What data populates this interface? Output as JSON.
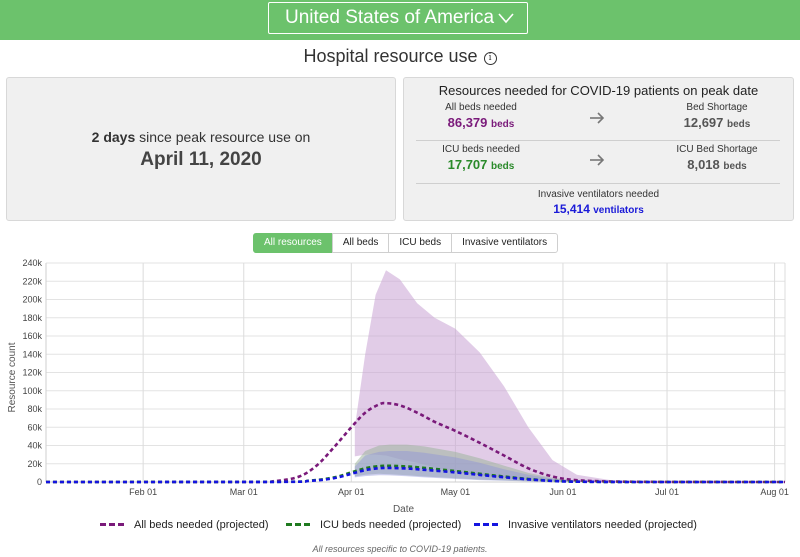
{
  "header": {
    "country": "United States of America",
    "title": "Hospital resource use"
  },
  "peak_card": {
    "days": "2 days",
    "since_text": " since peak resource use on",
    "date": "April 11, 2020"
  },
  "resources_card": {
    "title": "Resources needed for COVID-19 patients on peak date",
    "all_beds_label": "All beds needed",
    "all_beds_value": "86,379",
    "all_beds_unit": "beds",
    "bed_shortage_label": "Bed Shortage",
    "bed_shortage_value": "12,697",
    "bed_shortage_unit": "beds",
    "icu_label": "ICU beds needed",
    "icu_value": "17,707",
    "icu_unit": "beds",
    "icu_shortage_label": "ICU Bed Shortage",
    "icu_shortage_value": "8,018",
    "icu_shortage_unit": "beds",
    "vent_label": "Invasive ventilators needed",
    "vent_value": "15,414",
    "vent_unit": "ventilators"
  },
  "tabs": [
    "All resources",
    "All beds",
    "ICU beds",
    "Invasive ventilators"
  ],
  "active_tab": 0,
  "colors": {
    "accent": "#6cc26c",
    "all_beds": "#7a1a7a",
    "icu": "#1f7a1f",
    "vent": "#1414e0"
  },
  "footnote": "All resources specific to COVID-19 patients.",
  "chart_data": {
    "type": "line",
    "xlabel": "Date",
    "ylabel": "Resource count",
    "x_tick_labels": [
      "Feb 01",
      "Mar 01",
      "Apr 01",
      "May 01",
      "Jun 01",
      "Jul 01",
      "Aug 01"
    ],
    "x_tick_dates": [
      "2020-02-01",
      "2020-03-01",
      "2020-04-01",
      "2020-05-01",
      "2020-06-01",
      "2020-07-01",
      "2020-08-01"
    ],
    "y_tick_labels": [
      "0",
      "20k",
      "40k",
      "60k",
      "80k",
      "100k",
      "120k",
      "140k",
      "160k",
      "180k",
      "200k",
      "220k",
      "240k"
    ],
    "ylim": [
      0,
      240000
    ],
    "xlim": [
      "2020-01-04",
      "2020-08-04"
    ],
    "grid": true,
    "legend_position": "bottom",
    "series": [
      {
        "name": "All beds needed (projected)",
        "color": "#7a1a7a",
        "dash": true,
        "x": [
          "2020-01-04",
          "2020-03-01",
          "2020-03-10",
          "2020-03-17",
          "2020-03-22",
          "2020-03-27",
          "2020-04-01",
          "2020-04-05",
          "2020-04-09",
          "2020-04-11",
          "2020-04-15",
          "2020-04-20",
          "2020-04-25",
          "2020-05-01",
          "2020-05-08",
          "2020-05-15",
          "2020-05-22",
          "2020-05-29",
          "2020-06-05",
          "2020-06-15",
          "2020-06-30",
          "2020-08-04"
        ],
        "y": [
          0,
          0,
          1000,
          6000,
          18000,
          38000,
          60000,
          76000,
          85000,
          86379,
          84000,
          76000,
          66000,
          56000,
          43000,
          29000,
          15000,
          6000,
          2000,
          600,
          100,
          0
        ]
      },
      {
        "name": "ICU beds needed (projected)",
        "color": "#1f7a1f",
        "dash": true,
        "x": [
          "2020-01-04",
          "2020-03-10",
          "2020-03-20",
          "2020-03-27",
          "2020-04-01",
          "2020-04-05",
          "2020-04-09",
          "2020-04-12",
          "2020-04-17",
          "2020-04-22",
          "2020-05-01",
          "2020-05-08",
          "2020-05-15",
          "2020-05-22",
          "2020-05-29",
          "2020-06-05",
          "2020-06-20",
          "2020-08-04"
        ],
        "y": [
          0,
          200,
          1500,
          5000,
          10500,
          15000,
          17400,
          17707,
          17000,
          15500,
          12000,
          9000,
          6000,
          3300,
          1300,
          400,
          50,
          0
        ]
      },
      {
        "name": "Invasive ventilators needed (projected)",
        "color": "#1414e0",
        "dash": true,
        "x": [
          "2020-01-04",
          "2020-03-10",
          "2020-03-20",
          "2020-03-27",
          "2020-04-01",
          "2020-04-05",
          "2020-04-09",
          "2020-04-12",
          "2020-04-17",
          "2020-04-22",
          "2020-05-01",
          "2020-05-08",
          "2020-05-15",
          "2020-05-22",
          "2020-05-29",
          "2020-06-05",
          "2020-06-20",
          "2020-08-04"
        ],
        "y": [
          0,
          150,
          1200,
          4200,
          9000,
          13000,
          15100,
          15414,
          14800,
          13400,
          10500,
          7800,
          5200,
          2900,
          1100,
          350,
          40,
          0
        ]
      }
    ],
    "bands": [
      {
        "series": "All beds needed (projected)",
        "color": "#c9a3d3",
        "x": [
          "2020-04-02",
          "2020-04-05",
          "2020-04-08",
          "2020-04-11",
          "2020-04-15",
          "2020-04-20",
          "2020-04-25",
          "2020-05-01",
          "2020-05-08",
          "2020-05-15",
          "2020-05-22",
          "2020-05-29",
          "2020-06-05",
          "2020-06-15",
          "2020-06-25",
          "2020-07-05"
        ],
        "upper": [
          60000,
          140000,
          205000,
          232000,
          222000,
          196000,
          180000,
          168000,
          142000,
          105000,
          60000,
          24000,
          8000,
          2000,
          500,
          100
        ],
        "lower": [
          28000,
          30000,
          30000,
          29000,
          25000,
          21000,
          16000,
          11000,
          7000,
          4000,
          2000,
          800,
          200,
          50,
          0,
          0
        ]
      },
      {
        "series": "ICU beds needed (projected)",
        "color": "#9fb59f",
        "x": [
          "2020-04-02",
          "2020-04-05",
          "2020-04-09",
          "2020-04-12",
          "2020-04-17",
          "2020-04-22",
          "2020-05-01",
          "2020-05-08",
          "2020-05-15",
          "2020-05-22",
          "2020-05-29",
          "2020-06-05",
          "2020-06-15"
        ],
        "upper": [
          20000,
          34000,
          40000,
          41000,
          41000,
          39000,
          33000,
          26000,
          18000,
          10000,
          4500,
          1500,
          300
        ],
        "lower": [
          6000,
          8000,
          9000,
          8500,
          7500,
          6000,
          4000,
          2600,
          1600,
          800,
          300,
          100,
          0
        ]
      },
      {
        "series": "Invasive ventilators needed (projected)",
        "color": "#8f93d8",
        "x": [
          "2020-04-02",
          "2020-04-05",
          "2020-04-09",
          "2020-04-12",
          "2020-04-17",
          "2020-04-22",
          "2020-05-01",
          "2020-05-08",
          "2020-05-15",
          "2020-05-22",
          "2020-05-29",
          "2020-06-05",
          "2020-06-15"
        ],
        "upper": [
          17000,
          29000,
          33000,
          34000,
          34000,
          32000,
          27000,
          21000,
          14000,
          8000,
          3500,
          1200,
          200
        ],
        "lower": [
          5000,
          6500,
          7500,
          7200,
          6300,
          5000,
          3300,
          2100,
          1300,
          650,
          250,
          80,
          0
        ]
      }
    ]
  }
}
